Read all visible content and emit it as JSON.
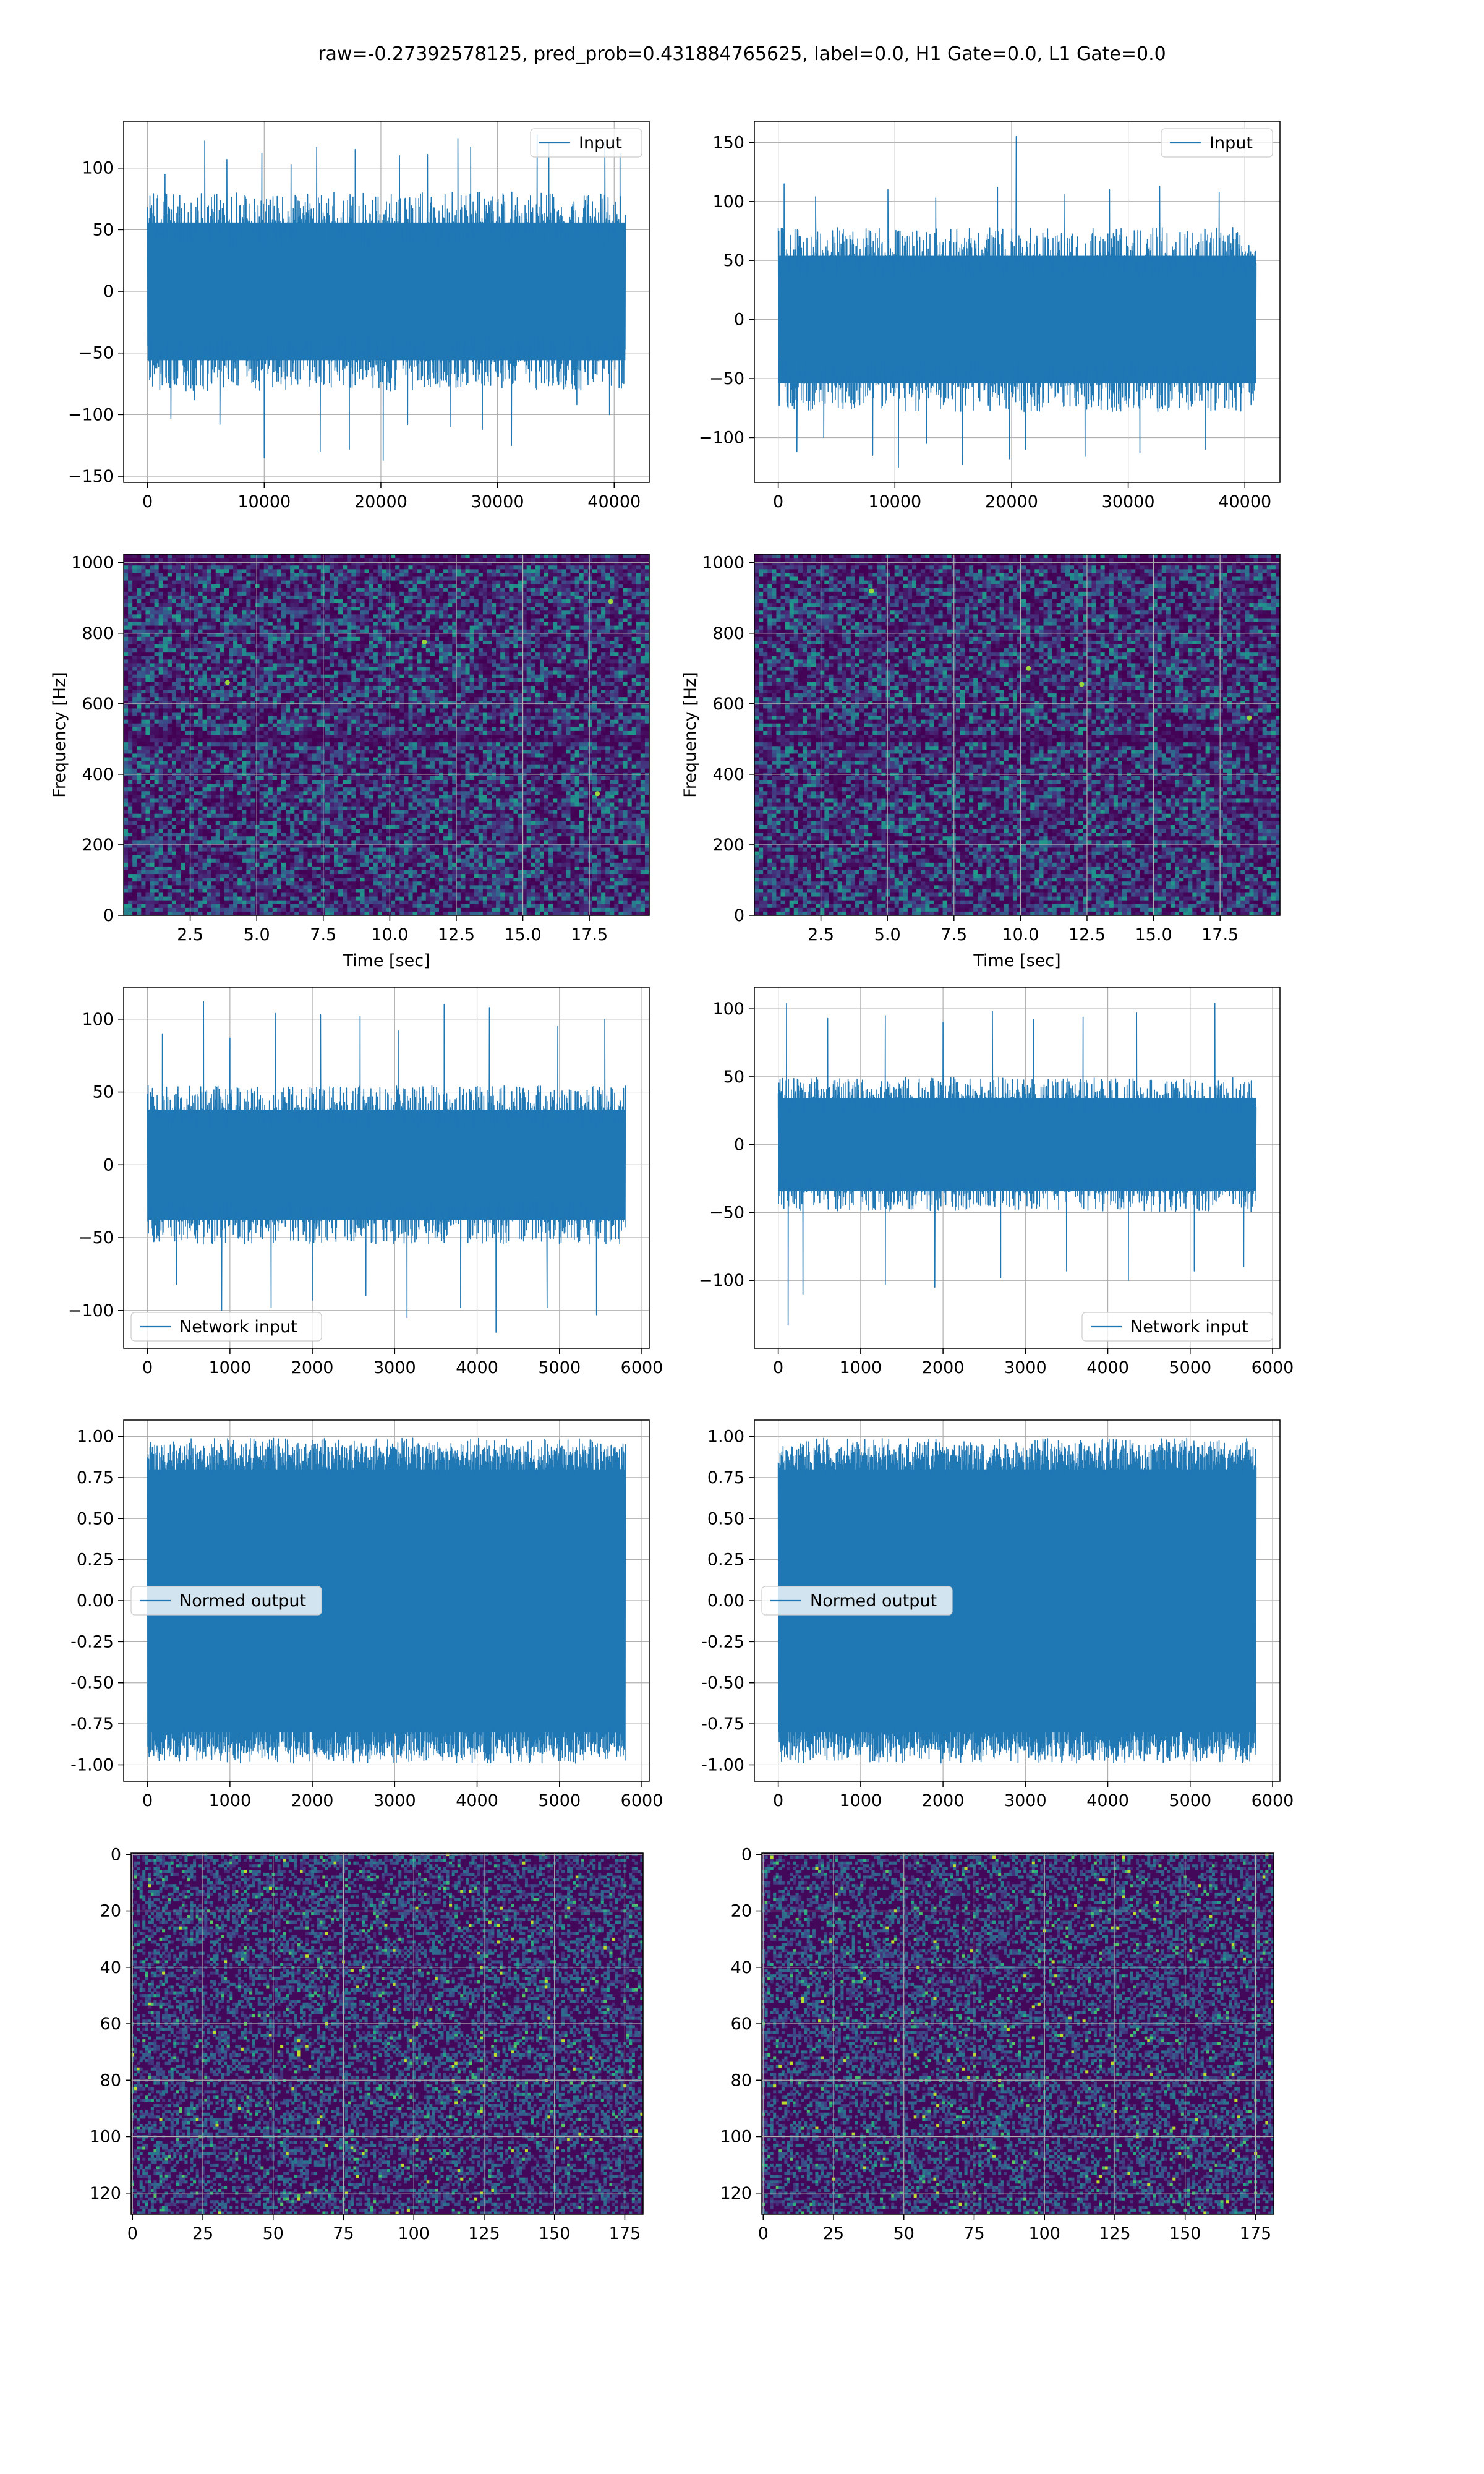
{
  "figure": {
    "title": "raw=-0.27392578125, pred_prob=0.431884765625, label=0.0, H1 Gate=0.0, L1 Gate=0.0"
  },
  "colors": {
    "line": "#1f77b4",
    "grid": "#b0b0b0",
    "viridis": [
      "#440154",
      "#472c7a",
      "#3b518b",
      "#2c718e",
      "#21908d",
      "#27ad81",
      "#5cc863",
      "#aadc32",
      "#fde725"
    ]
  },
  "chart_data": [
    {
      "id": "input_left",
      "type": "line",
      "legend": [
        "Input"
      ],
      "legend_loc": "upper right",
      "x_range": [
        0,
        40960
      ],
      "xlim": [
        -2048,
        43008
      ],
      "ylim": [
        -155,
        138
      ],
      "xticks": [
        0,
        10000,
        20000,
        30000,
        40000
      ],
      "yticks": [
        -150,
        -100,
        -50,
        0,
        50,
        100
      ],
      "xlabel": "",
      "ylabel": "",
      "grid": true,
      "envelope": {
        "upper": 62,
        "lower": -62
      },
      "spikes_up": [
        [
          1500,
          95
        ],
        [
          4900,
          122
        ],
        [
          6800,
          107
        ],
        [
          9800,
          112
        ],
        [
          12300,
          103
        ],
        [
          14500,
          117
        ],
        [
          17800,
          115
        ],
        [
          21600,
          110
        ],
        [
          24000,
          111
        ],
        [
          26600,
          124
        ],
        [
          27700,
          117
        ],
        [
          33400,
          127
        ],
        [
          34400,
          120
        ],
        [
          39200,
          122
        ],
        [
          40500,
          112
        ]
      ],
      "spikes_down": [
        [
          2000,
          -103
        ],
        [
          4000,
          -88
        ],
        [
          6200,
          -108
        ],
        [
          10000,
          -135
        ],
        [
          14800,
          -130
        ],
        [
          17300,
          -128
        ],
        [
          20200,
          -137
        ],
        [
          22300,
          -108
        ],
        [
          26000,
          -110
        ],
        [
          28700,
          -112
        ],
        [
          31200,
          -125
        ],
        [
          36800,
          -92
        ],
        [
          39600,
          -100
        ]
      ]
    },
    {
      "id": "input_right",
      "type": "line",
      "legend": [
        "Input"
      ],
      "legend_loc": "upper right",
      "x_range": [
        0,
        40960
      ],
      "xlim": [
        -2048,
        43008
      ],
      "ylim": [
        -138,
        168
      ],
      "xticks": [
        0,
        10000,
        20000,
        30000,
        40000
      ],
      "yticks": [
        -100,
        -50,
        0,
        50,
        100,
        150
      ],
      "xlabel": "",
      "ylabel": "",
      "grid": true,
      "envelope": {
        "upper": 60,
        "lower": -60
      },
      "spikes_up": [
        [
          500,
          115
        ],
        [
          3200,
          104
        ],
        [
          9400,
          110
        ],
        [
          13500,
          103
        ],
        [
          18800,
          112
        ],
        [
          20400,
          155
        ],
        [
          24500,
          106
        ],
        [
          28400,
          110
        ],
        [
          32700,
          113
        ],
        [
          37800,
          108
        ]
      ],
      "spikes_down": [
        [
          1600,
          -112
        ],
        [
          3900,
          -100
        ],
        [
          8100,
          -115
        ],
        [
          10300,
          -125
        ],
        [
          12700,
          -105
        ],
        [
          15800,
          -123
        ],
        [
          19800,
          -118
        ],
        [
          21200,
          -110
        ],
        [
          26300,
          -116
        ],
        [
          31000,
          -113
        ],
        [
          36600,
          -110
        ]
      ]
    },
    {
      "id": "spectrogram_left",
      "type": "heatmap",
      "colormap": "viridis",
      "xlim": [
        0,
        19.75
      ],
      "ylim": [
        0,
        1024
      ],
      "xticks": [
        2.5,
        5.0,
        7.5,
        10.0,
        12.5,
        15.0,
        17.5
      ],
      "xtick_labels": [
        "2.5",
        "5.0",
        "7.5",
        "10.0",
        "12.5",
        "15.0",
        "17.5"
      ],
      "yticks": [
        0,
        200,
        400,
        600,
        800,
        1000
      ],
      "xlabel": "Time [sec]",
      "ylabel": "Frequency [Hz]",
      "grid": true,
      "seed": 11,
      "dark_bands": [
        [
          500,
          14
        ],
        [
          1000,
          12
        ]
      ],
      "bright_points": [
        [
          18.3,
          890
        ],
        [
          11.3,
          775
        ],
        [
          3.9,
          660
        ],
        [
          17.8,
          345
        ]
      ]
    },
    {
      "id": "spectrogram_right",
      "type": "heatmap",
      "colormap": "viridis",
      "xlim": [
        0,
        19.75
      ],
      "ylim": [
        0,
        1024
      ],
      "xticks": [
        2.5,
        5.0,
        7.5,
        10.0,
        12.5,
        15.0,
        17.5
      ],
      "xtick_labels": [
        "2.5",
        "5.0",
        "7.5",
        "10.0",
        "12.5",
        "15.0",
        "17.5"
      ],
      "yticks": [
        0,
        200,
        400,
        600,
        800,
        1000
      ],
      "xlabel": "Time [sec]",
      "ylabel": "Frequency [Hz]",
      "grid": true,
      "seed": 23,
      "dark_bands": [
        [
          500,
          14
        ],
        [
          1000,
          12
        ]
      ],
      "bright_points": [
        [
          4.4,
          920
        ],
        [
          12.3,
          655
        ],
        [
          18.6,
          560
        ],
        [
          10.3,
          700
        ]
      ]
    },
    {
      "id": "network_input_left",
      "type": "line",
      "legend": [
        "Network input"
      ],
      "legend_loc": "lower left",
      "x_range": [
        0,
        5800
      ],
      "xlim": [
        -290,
        6090
      ],
      "ylim": [
        -126,
        122
      ],
      "xticks": [
        0,
        1000,
        2000,
        3000,
        4000,
        5000,
        6000
      ],
      "yticks": [
        -100,
        -50,
        0,
        50,
        100
      ],
      "xlabel": "",
      "ylabel": "",
      "grid": true,
      "envelope": {
        "upper": 42,
        "lower": -42
      },
      "spikes_up": [
        [
          180,
          90
        ],
        [
          680,
          112
        ],
        [
          1000,
          87
        ],
        [
          1550,
          104
        ],
        [
          2100,
          103
        ],
        [
          2580,
          102
        ],
        [
          3050,
          92
        ],
        [
          3600,
          110
        ],
        [
          4150,
          108
        ],
        [
          4980,
          95
        ],
        [
          5550,
          100
        ]
      ],
      "spikes_down": [
        [
          350,
          -82
        ],
        [
          900,
          -100
        ],
        [
          1500,
          -98
        ],
        [
          2000,
          -93
        ],
        [
          2650,
          -90
        ],
        [
          3150,
          -105
        ],
        [
          3800,
          -98
        ],
        [
          4230,
          -115
        ],
        [
          4850,
          -98
        ],
        [
          5450,
          -103
        ]
      ]
    },
    {
      "id": "network_input_right",
      "type": "line",
      "legend": [
        "Network input"
      ],
      "legend_loc": "lower right",
      "x_range": [
        0,
        5800
      ],
      "xlim": [
        -290,
        6090
      ],
      "ylim": [
        -150,
        116
      ],
      "xticks": [
        0,
        1000,
        2000,
        3000,
        4000,
        5000,
        6000
      ],
      "yticks": [
        -100,
        -50,
        0,
        50,
        100
      ],
      "xlabel": "",
      "ylabel": "",
      "grid": true,
      "envelope": {
        "upper": 38,
        "lower": -38
      },
      "spikes_up": [
        [
          100,
          104
        ],
        [
          600,
          93
        ],
        [
          1300,
          95
        ],
        [
          2000,
          90
        ],
        [
          2600,
          98
        ],
        [
          3100,
          92
        ],
        [
          3700,
          94
        ],
        [
          4350,
          97
        ],
        [
          5300,
          104
        ]
      ],
      "spikes_down": [
        [
          120,
          -133
        ],
        [
          300,
          -110
        ],
        [
          1300,
          -103
        ],
        [
          1900,
          -105
        ],
        [
          2700,
          -98
        ],
        [
          3500,
          -93
        ],
        [
          4250,
          -100
        ],
        [
          5050,
          -93
        ],
        [
          5650,
          -90
        ]
      ]
    },
    {
      "id": "normed_output_left",
      "type": "line",
      "legend": [
        "Normed output"
      ],
      "legend_loc": "center left",
      "x_range": [
        0,
        5800
      ],
      "xlim": [
        -290,
        6090
      ],
      "ylim": [
        -1.1,
        1.1
      ],
      "xticks": [
        0,
        1000,
        2000,
        3000,
        4000,
        5000,
        6000
      ],
      "yticks": [
        -1.0,
        -0.75,
        -0.5,
        -0.25,
        0.0,
        0.25,
        0.5,
        0.75,
        1.0
      ],
      "ytick_labels": [
        "-1.00",
        "-0.75",
        "-0.50",
        "-0.25",
        "0.00",
        "0.25",
        "0.50",
        "0.75",
        "1.00"
      ],
      "xlabel": "",
      "ylabel": "",
      "grid": true,
      "saturated": true,
      "envelope": {
        "upper": 0.8,
        "lower": -0.8
      },
      "spikes_up": [],
      "spikes_down": []
    },
    {
      "id": "normed_output_right",
      "type": "line",
      "legend": [
        "Normed output"
      ],
      "legend_loc": "center left",
      "x_range": [
        0,
        5800
      ],
      "xlim": [
        -290,
        6090
      ],
      "ylim": [
        -1.1,
        1.1
      ],
      "xticks": [
        0,
        1000,
        2000,
        3000,
        4000,
        5000,
        6000
      ],
      "yticks": [
        -1.0,
        -0.75,
        -0.5,
        -0.25,
        0.0,
        0.25,
        0.5,
        0.75,
        1.0
      ],
      "ytick_labels": [
        "-1.00",
        "-0.75",
        "-0.50",
        "-0.25",
        "0.00",
        "0.25",
        "0.50",
        "0.75",
        "1.00"
      ],
      "xlabel": "",
      "ylabel": "",
      "grid": true,
      "saturated": true,
      "envelope": {
        "upper": 0.8,
        "lower": -0.8
      },
      "spikes_up": [],
      "spikes_down": []
    },
    {
      "id": "matrix_left",
      "type": "heatmap",
      "colormap": "viridis",
      "cols": 182,
      "rows": 128,
      "xlim": [
        -0.5,
        181.5
      ],
      "ylim": [
        127.5,
        -0.5
      ],
      "xticks": [
        0,
        25,
        50,
        75,
        100,
        125,
        150,
        175
      ],
      "yticks": [
        0,
        20,
        40,
        60,
        80,
        100,
        120
      ],
      "xlabel": "",
      "ylabel": "",
      "grid": true,
      "seed": 37
    },
    {
      "id": "matrix_right",
      "type": "heatmap",
      "colormap": "viridis",
      "cols": 182,
      "rows": 128,
      "xlim": [
        -0.5,
        181.5
      ],
      "ylim": [
        127.5,
        -0.5
      ],
      "xticks": [
        0,
        25,
        50,
        75,
        100,
        125,
        150,
        175
      ],
      "yticks": [
        0,
        20,
        40,
        60,
        80,
        100,
        120
      ],
      "xlabel": "",
      "ylabel": "",
      "grid": true,
      "seed": 53
    }
  ]
}
